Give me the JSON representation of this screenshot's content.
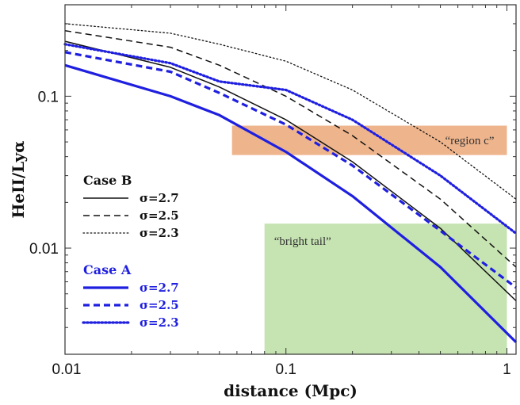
{
  "chart_data": {
    "type": "line",
    "title": "",
    "xlabel": "distance (Mpc)",
    "ylabel": "HeII/Lyα",
    "xscale": "log",
    "yscale": "log",
    "xlim": [
      0.01,
      1.1
    ],
    "ylim": [
      0.002,
      0.4
    ],
    "x_ticks": [
      {
        "value": 0.01,
        "label": "0.01"
      },
      {
        "value": 0.1,
        "label": "0.1"
      },
      {
        "value": 1,
        "label": "1"
      }
    ],
    "y_ticks": [
      {
        "value": 0.01,
        "label": "0.01"
      },
      {
        "value": 0.1,
        "label": "0.1"
      }
    ],
    "grid": false,
    "legend_position": "left",
    "colors": {
      "case_b": "#111111",
      "case_a": "#1f1fe0",
      "region_c": "#eeb48c",
      "bright_tail": "#c6e3b2"
    },
    "regions": [
      {
        "label": "“region c”",
        "x": [
          0.057,
          1.0
        ],
        "y": [
          0.041,
          0.064
        ],
        "color": "#eeb48c"
      },
      {
        "label": "“bright tail”",
        "x": [
          0.08,
          1.0
        ],
        "y": [
          0.002,
          0.0145
        ],
        "color": "#c6e3b2"
      }
    ],
    "legend": {
      "case_b_title": "Case B",
      "case_a_title": "Case A"
    },
    "series": [
      {
        "group": "Case B",
        "name": "σ=2.7",
        "style": "solid",
        "color": "#111111",
        "x": [
          0.01,
          0.03,
          0.05,
          0.1,
          0.2,
          0.5,
          1.1
        ],
        "y": [
          0.23,
          0.155,
          0.115,
          0.07,
          0.037,
          0.0135,
          0.0045
        ]
      },
      {
        "group": "Case B",
        "name": "σ=2.5",
        "style": "dashed",
        "color": "#111111",
        "x": [
          0.01,
          0.03,
          0.05,
          0.1,
          0.2,
          0.5,
          1.1
        ],
        "y": [
          0.27,
          0.21,
          0.16,
          0.1,
          0.055,
          0.021,
          0.0075
        ]
      },
      {
        "group": "Case B",
        "name": "σ=2.3",
        "style": "dotted",
        "color": "#111111",
        "x": [
          0.01,
          0.03,
          0.05,
          0.1,
          0.2,
          0.5,
          1.1
        ],
        "y": [
          0.3,
          0.26,
          0.22,
          0.17,
          0.11,
          0.05,
          0.021
        ]
      },
      {
        "group": "Case A",
        "name": "σ=2.7",
        "style": "solid",
        "color": "#1f1fe0",
        "x": [
          0.01,
          0.03,
          0.05,
          0.1,
          0.2,
          0.5,
          1.1
        ],
        "y": [
          0.16,
          0.1,
          0.075,
          0.043,
          0.022,
          0.0075,
          0.0024
        ]
      },
      {
        "group": "Case A",
        "name": "σ=2.5",
        "style": "dashed",
        "color": "#1f1fe0",
        "x": [
          0.01,
          0.03,
          0.05,
          0.1,
          0.2,
          0.5,
          1.1
        ],
        "y": [
          0.195,
          0.145,
          0.105,
          0.065,
          0.035,
          0.013,
          0.0055
        ]
      },
      {
        "group": "Case A",
        "name": "σ=2.3",
        "style": "dotted",
        "color": "#1f1fe0",
        "x": [
          0.01,
          0.03,
          0.05,
          0.1,
          0.2,
          0.5,
          1.1
        ],
        "y": [
          0.22,
          0.165,
          0.125,
          0.11,
          0.07,
          0.03,
          0.0125
        ]
      }
    ]
  }
}
